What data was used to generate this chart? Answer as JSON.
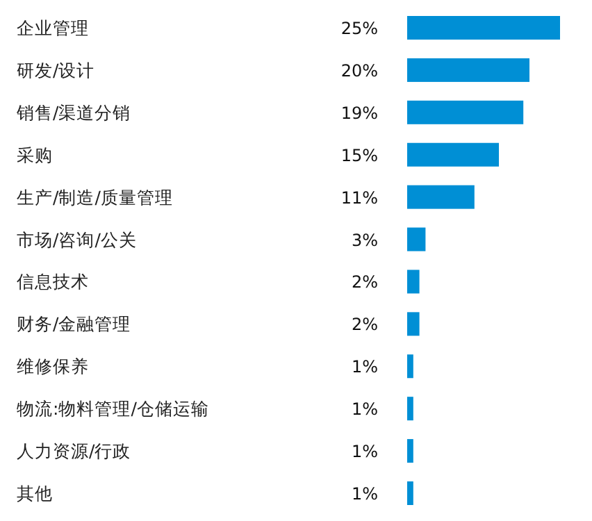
{
  "chart_data": {
    "type": "bar",
    "orientation": "horizontal",
    "categories": [
      "企业管理",
      "研发/设计",
      "销售/渠道分销",
      "采购",
      "生产/制造/质量管理",
      "市场/咨询/公关",
      "信息技术",
      "财务/金融管理",
      "维修保养",
      "物流:物料管理/仓储运输",
      "人力资源/行政",
      "其他"
    ],
    "values": [
      25,
      20,
      19,
      15,
      11,
      3,
      2,
      2,
      1,
      1,
      1,
      1
    ],
    "value_labels": [
      "25%",
      "20%",
      "19%",
      "15%",
      "11%",
      "3%",
      "2%",
      "2%",
      "1%",
      "1%",
      "1%",
      "1%"
    ],
    "color": "#008fd5"
  }
}
